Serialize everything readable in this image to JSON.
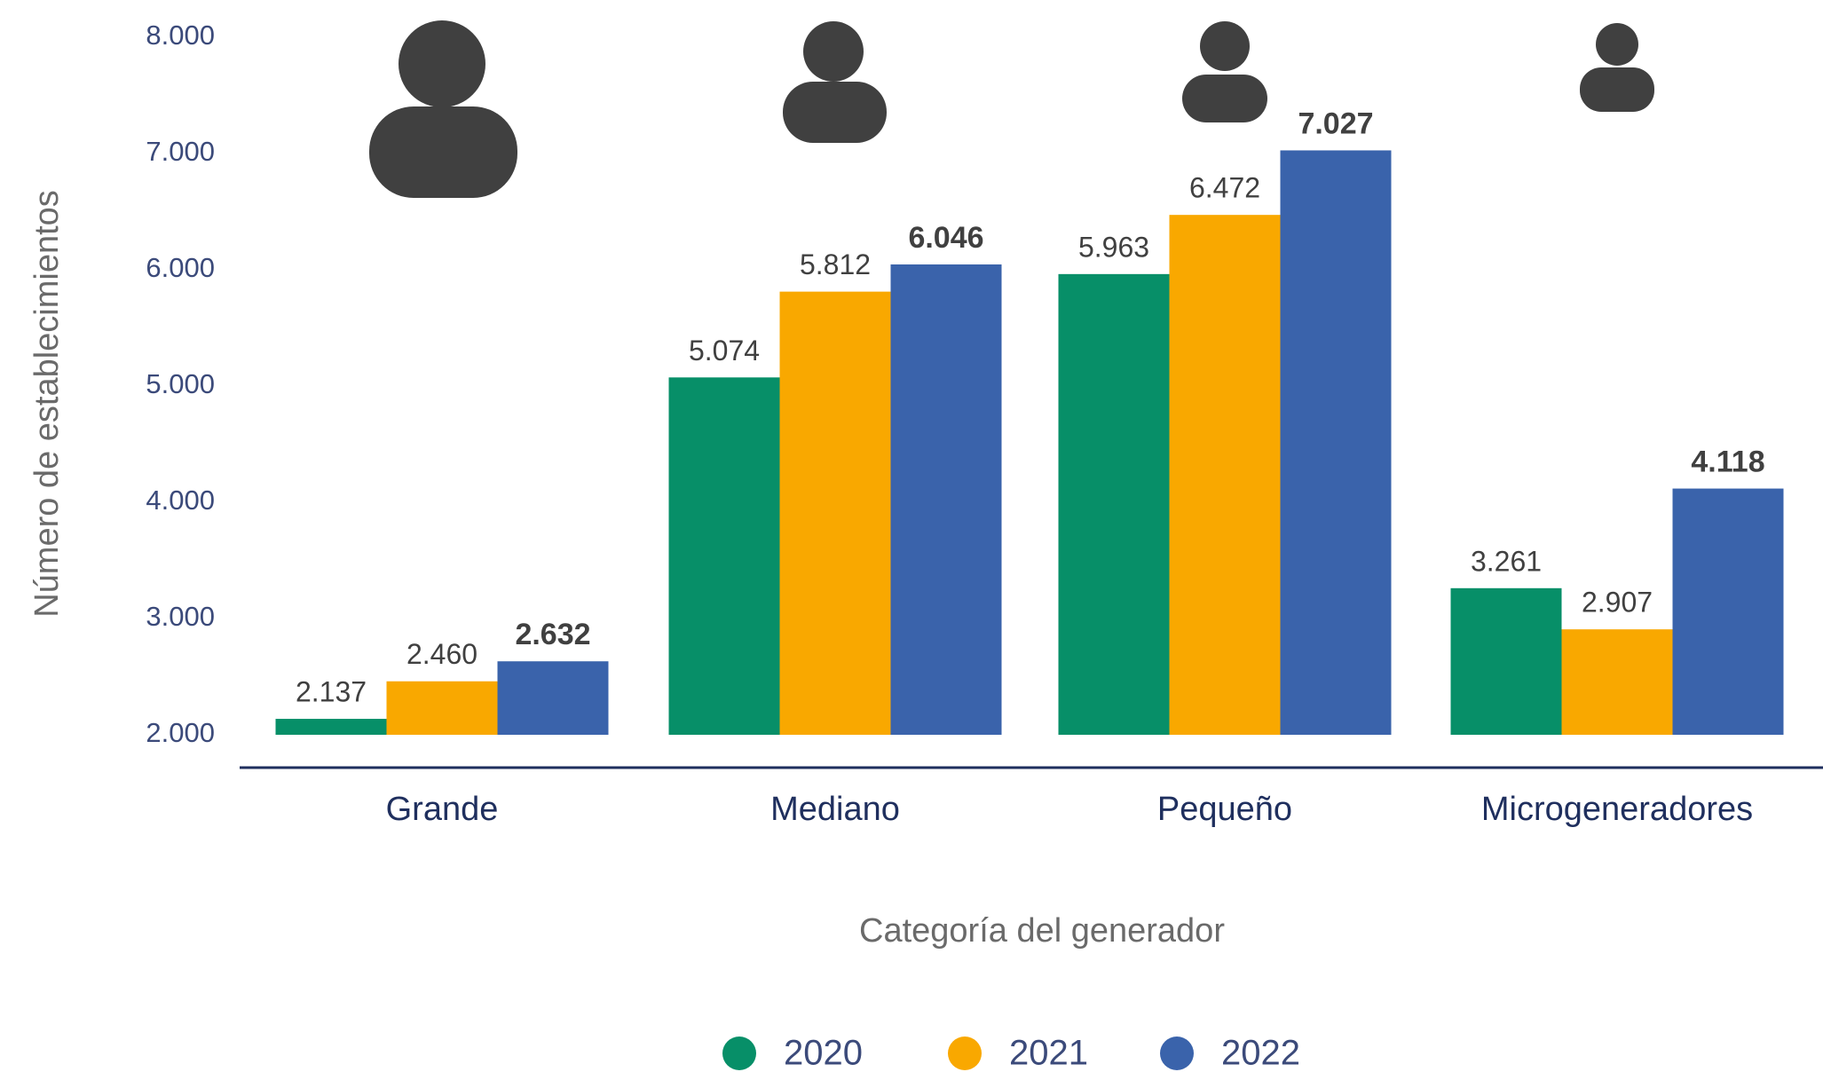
{
  "chart_data": {
    "type": "bar",
    "x_label": "Categoría del generador",
    "y_label": "Número de establecimientos",
    "categories": [
      "Grande",
      "Mediano",
      "Pequeño",
      "Microgeneradores"
    ],
    "series": [
      {
        "name": "2020",
        "color": "#078f68",
        "values": [
          2137,
          5074,
          5963,
          3261
        ],
        "value_labels": [
          "2.137",
          "5.074",
          "5.963",
          "3.261"
        ]
      },
      {
        "name": "2021",
        "color": "#f9a800",
        "values": [
          2460,
          5812,
          6472,
          2907
        ],
        "value_labels": [
          "2.460",
          "5.812",
          "6.472",
          "2.907"
        ]
      },
      {
        "name": "2022",
        "color": "#3a63ab",
        "values": [
          2632,
          6046,
          7027,
          4118
        ],
        "value_labels": [
          "2.632",
          "6.046",
          "7.027",
          "4.118"
        ]
      }
    ],
    "ylim": [
      2000,
      8000
    ],
    "yticks": [
      {
        "value": 2000,
        "label": "2.000"
      },
      {
        "value": 3000,
        "label": "3.000"
      },
      {
        "value": 4000,
        "label": "4.000"
      },
      {
        "value": 5000,
        "label": "5.000"
      },
      {
        "value": 6000,
        "label": "6.000"
      },
      {
        "value": 7000,
        "label": "7.000"
      },
      {
        "value": 8000,
        "label": "8.000"
      }
    ],
    "legend": "bottom"
  }
}
